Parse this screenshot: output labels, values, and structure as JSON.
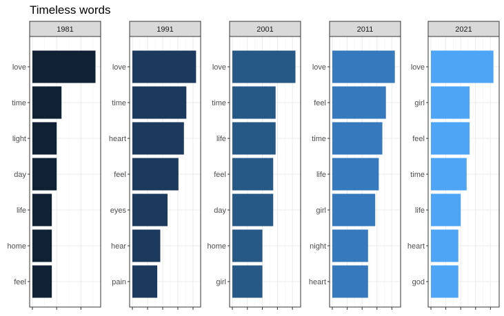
{
  "chart_data": {
    "type": "bar",
    "title": "Timeless words",
    "xlabel": "",
    "ylabel": "",
    "grid": true,
    "facets": [
      {
        "label": "1981",
        "color": "#0f2133",
        "categories": [
          "love",
          "time",
          "light",
          "day",
          "life",
          "home",
          "feel"
        ],
        "values": [
          13,
          6,
          5,
          5,
          4,
          4,
          4
        ],
        "xlim": [
          0,
          13.5
        ]
      },
      {
        "label": "1991",
        "color": "#1c3a5e",
        "categories": [
          "love",
          "time",
          "heart",
          "feel",
          "eyes",
          "hear",
          "pain"
        ],
        "values": [
          10.5,
          8.9,
          8.5,
          7.6,
          5.8,
          4.6,
          4.1
        ],
        "xlim": [
          0,
          10.8
        ]
      },
      {
        "label": "2001",
        "color": "#275987",
        "categories": [
          "love",
          "time",
          "life",
          "feel",
          "day",
          "home",
          "girl"
        ],
        "values": [
          10.5,
          7.2,
          7.2,
          6.8,
          6.8,
          5.0,
          5.0
        ],
        "xlim": [
          0,
          10.9
        ]
      },
      {
        "label": "2011",
        "color": "#3779bd",
        "categories": [
          "love",
          "feel",
          "time",
          "life",
          "girl",
          "night",
          "heart"
        ],
        "values": [
          10.5,
          9.0,
          8.4,
          7.8,
          7.2,
          6.0,
          6.0
        ],
        "xlim": [
          0,
          11.0
        ]
      },
      {
        "label": "2021",
        "color": "#4ea4f5",
        "categories": [
          "love",
          "girl",
          "feel",
          "time",
          "life",
          "heart",
          "god"
        ],
        "values": [
          10.5,
          6.5,
          6.5,
          6.0,
          5.0,
          4.6,
          4.6
        ],
        "xlim": [
          0,
          11.0
        ]
      }
    ]
  }
}
